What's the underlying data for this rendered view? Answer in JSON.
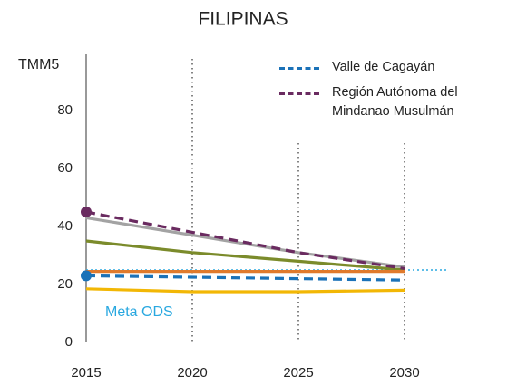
{
  "chart_data": {
    "type": "line",
    "title": "FILIPINAS",
    "y_label": "TMM5",
    "x": [
      2015,
      2020,
      2025,
      2030
    ],
    "xlim": [
      2015,
      2030
    ],
    "xticks": [
      2015,
      2020,
      2025,
      2030
    ],
    "ylim": [
      0,
      100
    ],
    "yticks": [
      0,
      20,
      40,
      60,
      80
    ],
    "legend": "top-right",
    "series": [
      {
        "color": "#a3a3a3",
        "style": "solid",
        "values": [
          43,
          37,
          31,
          26
        ]
      },
      {
        "color": "#7b8b2b",
        "style": "solid",
        "values": [
          35,
          31,
          28,
          25
        ]
      },
      {
        "color": "#e07a2c",
        "style": "solid",
        "values": [
          24.5,
          24.5,
          24.5,
          24.5
        ]
      },
      {
        "color": "#f2b705",
        "style": "solid",
        "values": [
          18.5,
          17.5,
          17.5,
          18
        ]
      },
      {
        "name": "Valle de Cagayán",
        "color": "#1b72b8",
        "style": "dashed",
        "start_marker": true,
        "values": [
          23,
          22.5,
          22,
          21.5
        ]
      },
      {
        "name": "Región Autónoma del Mindanao Musulmán",
        "color": "#6a2b60",
        "style": "dashed",
        "start_marker": true,
        "values": [
          45,
          38,
          31,
          25.5
        ]
      }
    ],
    "target": {
      "value": 25,
      "label": "Meta ODS",
      "color": "#29a8e0"
    }
  }
}
